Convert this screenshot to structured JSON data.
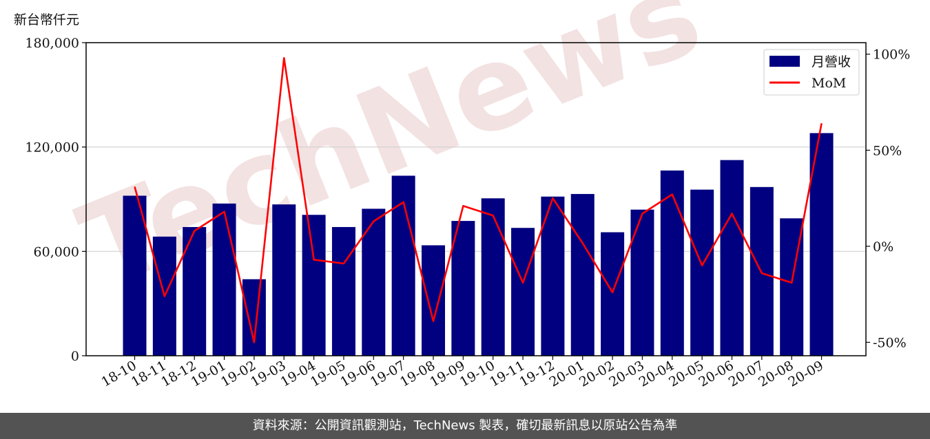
{
  "unit_label": "新台幣仟元",
  "footer_text": "資料來源：公開資訊觀測站，TechNews 製表，確切最新訊息以原站公告為準",
  "watermark_text": "TechNews",
  "colors": {
    "bar": "#000080",
    "line": "#ff0000",
    "grid": "#d0d0d0",
    "footer_bg": "#535353",
    "watermark": "#f3e2e2"
  },
  "chart_data": {
    "type": "bar+line",
    "title": "",
    "categories": [
      "18-10",
      "18-11",
      "18-12",
      "19-01",
      "19-02",
      "19-03",
      "19-04",
      "19-05",
      "19-06",
      "19-07",
      "19-08",
      "19-09",
      "19-10",
      "19-11",
      "19-12",
      "20-01",
      "20-02",
      "20-03",
      "20-04",
      "20-05",
      "20-06",
      "20-07",
      "20-08",
      "20-09"
    ],
    "series": [
      {
        "name": "月營收",
        "type": "bar",
        "axis": "left",
        "values": [
          92000,
          68500,
          74000,
          87500,
          44000,
          87000,
          81000,
          74000,
          84500,
          103500,
          63500,
          77500,
          90500,
          73500,
          91500,
          93000,
          71000,
          84000,
          106500,
          95500,
          112500,
          97000,
          79000,
          128000
        ]
      },
      {
        "name": "MoM",
        "type": "line",
        "axis": "right",
        "values": [
          31,
          -26,
          8,
          18,
          -50,
          98,
          -7,
          -9,
          13,
          23,
          -39,
          21,
          16,
          -19,
          25,
          1.6,
          -24,
          17,
          27,
          -10,
          17,
          -14,
          -19,
          64
        ]
      }
    ],
    "y_left": {
      "min": 0,
      "max": 180000,
      "ticks": [
        0,
        60000,
        120000,
        180000
      ],
      "tick_labels": [
        "0",
        "60,000",
        "120,000",
        "180,000"
      ]
    },
    "y_right": {
      "min": -57,
      "max": 106,
      "ticks": [
        -50,
        0,
        50,
        100
      ],
      "tick_labels": [
        "-50%",
        "0%",
        "50%",
        "100%"
      ]
    },
    "grid": "horizontal at left ticks",
    "legend": {
      "position": "top-right",
      "entries": [
        "月營收",
        "MoM"
      ]
    }
  }
}
